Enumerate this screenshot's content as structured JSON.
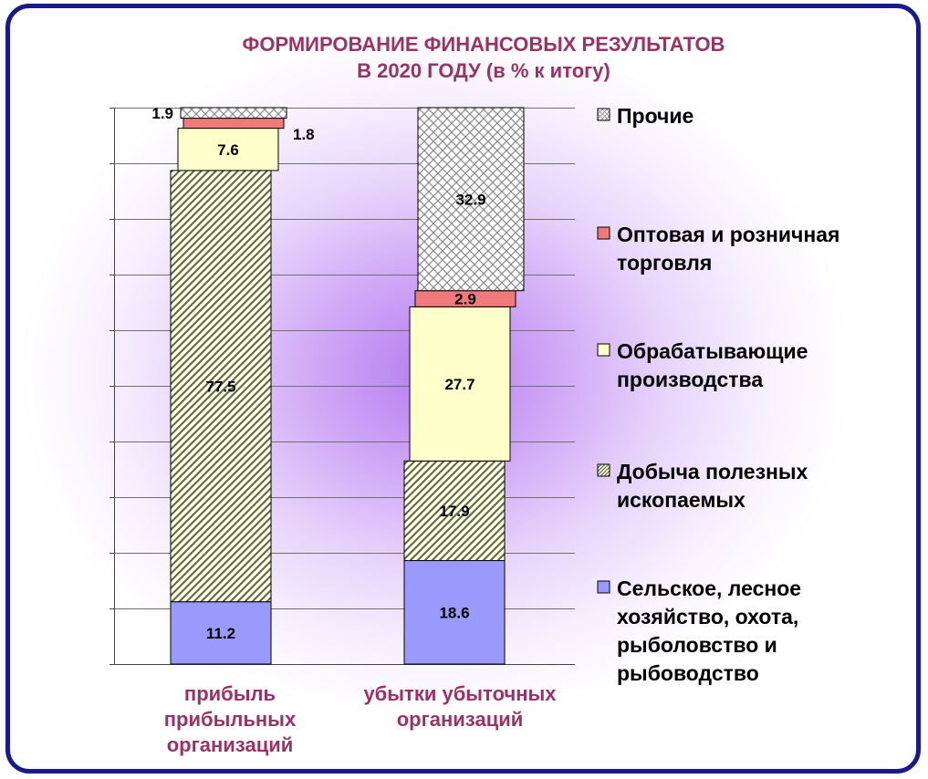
{
  "chart_data": {
    "type": "bar",
    "stacked": true,
    "title_lines": [
      "ФОРМИРОВАНИЕ ФИНАНСОВЫХ  РЕЗУЛЬТАТОВ",
      "В 2020 ГОДУ (в %  к итогу)"
    ],
    "categories": [
      [
        "прибыль",
        "прибыльных",
        "организаций"
      ],
      [
        "убытки  убыточных",
        "организаций"
      ]
    ],
    "ylim": [
      0,
      100
    ],
    "grid": true,
    "legend_position": "right",
    "series": [
      {
        "name_lines": [
          "Сельское, лесное",
          "хозяйство, охота,",
          "рыболовство и",
          "рыбоводство"
        ],
        "values": [
          11.2,
          18.6
        ],
        "labels": [
          "11.2",
          "18.6"
        ],
        "color": "#9a9afc",
        "pattern": "solid"
      },
      {
        "name_lines": [
          "Добыча полезных",
          "ископаемых"
        ],
        "values": [
          77.5,
          17.9
        ],
        "labels": [
          "77.5",
          "17.9"
        ],
        "color": "#66702a",
        "pattern": "diagonal"
      },
      {
        "name_lines": [
          "Обрабатывающие",
          "производства"
        ],
        "values": [
          7.6,
          27.7
        ],
        "labels": [
          "7.6",
          "27.7"
        ],
        "color": "#ffffcc",
        "pattern": "solid"
      },
      {
        "name_lines": [
          "Оптовая и розничная",
          "торговля"
        ],
        "values": [
          1.8,
          2.9
        ],
        "labels": [
          "1.8",
          "2.9"
        ],
        "color": "#f07a7a",
        "pattern": "solid"
      },
      {
        "name_lines": [
          "Прочие"
        ],
        "values": [
          1.9,
          32.9
        ],
        "labels": [
          "1.9",
          "32.9"
        ],
        "color": "#7a7a7a",
        "pattern": "crosshatch"
      }
    ]
  }
}
